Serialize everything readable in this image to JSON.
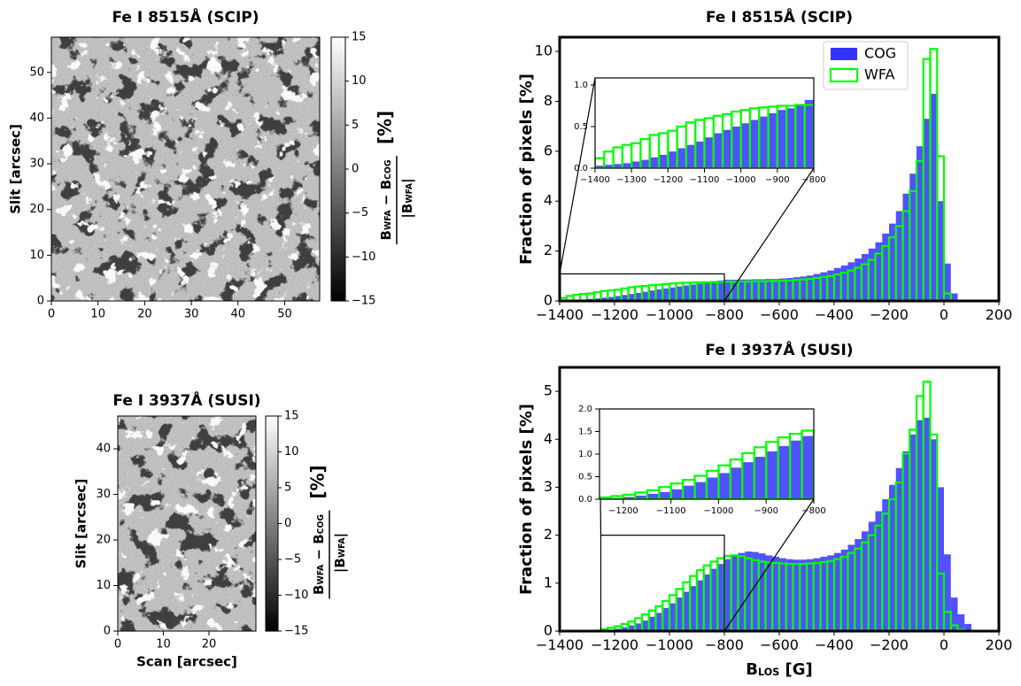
{
  "chart_data": [
    {
      "type": "heatmap",
      "title": "Fe I 8515Å (SCIP)",
      "ylabel": "Slit [arcsec]",
      "xlim": [
        0,
        57.5
      ],
      "ylim": [
        0,
        57.7
      ],
      "xticks": [
        0,
        10,
        20,
        30,
        40,
        50
      ],
      "yticks": [
        0,
        10,
        20,
        30,
        40,
        50
      ],
      "colormap": "gray",
      "clim": [
        -15,
        15
      ],
      "cticks": [
        {
          "value": -15,
          "label": "−15"
        },
        {
          "value": -10,
          "label": "−10"
        },
        {
          "value": -5,
          "label": "−5"
        },
        0,
        5,
        10,
        15
      ],
      "colorbar_label": {
        "numerator": [
          "B",
          "WFA",
          " − B",
          "COG"
        ],
        "denominator": [
          "|B",
          "WFA",
          "|"
        ],
        "unit": "[%]"
      }
    },
    {
      "type": "histogram",
      "title": "Fe I 8515Å (SCIP)",
      "ylabel": "Fraction of pixels [%]",
      "xlim": [
        -1400,
        200
      ],
      "ylim": [
        0,
        10.57
      ],
      "xticks": [
        {
          "value": -1400,
          "label": "−1400"
        },
        {
          "value": -1200,
          "label": "−1200"
        },
        {
          "value": -1000,
          "label": "−1000"
        },
        {
          "value": -800,
          "label": "−800"
        },
        {
          "value": -600,
          "label": "−600"
        },
        {
          "value": -400,
          "label": "−400"
        },
        {
          "value": -200,
          "label": "−200"
        },
        0,
        200
      ],
      "yticks": [
        0,
        2,
        4,
        6,
        8,
        10
      ],
      "bins": [
        -1400,
        -1375,
        -1350,
        -1325,
        -1300,
        -1275,
        -1250,
        -1225,
        -1200,
        -1175,
        -1150,
        -1125,
        -1100,
        -1075,
        -1050,
        -1025,
        -1000,
        -975,
        -950,
        -925,
        -900,
        -875,
        -850,
        -825,
        -800,
        -775,
        -750,
        -725,
        -700,
        -675,
        -650,
        -625,
        -600,
        -575,
        -550,
        -525,
        -500,
        -475,
        -450,
        -425,
        -400,
        -375,
        -350,
        -325,
        -300,
        -275,
        -250,
        -225,
        -200,
        -175,
        -150,
        -125,
        -100,
        -75,
        -50,
        -25,
        0,
        25,
        50
      ],
      "series": [
        {
          "name": "COG",
          "color": "#3333ff",
          "fill": true,
          "values": [
            0.03,
            0.04,
            0.05,
            0.06,
            0.08,
            0.1,
            0.13,
            0.16,
            0.2,
            0.24,
            0.28,
            0.32,
            0.37,
            0.42,
            0.46,
            0.5,
            0.54,
            0.58,
            0.62,
            0.66,
            0.7,
            0.72,
            0.75,
            0.82,
            0.85,
            0.85,
            0.86,
            0.86,
            0.87,
            0.87,
            0.88,
            0.88,
            0.9,
            0.92,
            0.95,
            0.98,
            1.02,
            1.08,
            1.15,
            1.22,
            1.32,
            1.42,
            1.55,
            1.7,
            1.88,
            2.1,
            2.35,
            2.7,
            3.1,
            3.6,
            4.3,
            5.1,
            6.2,
            7.3,
            8.3,
            4.0,
            1.5,
            0.3
          ]
        },
        {
          "name": "WFA",
          "color": "#00ff00",
          "fill": false,
          "values": [
            0.12,
            0.2,
            0.25,
            0.28,
            0.3,
            0.35,
            0.4,
            0.42,
            0.45,
            0.5,
            0.55,
            0.58,
            0.6,
            0.63,
            0.65,
            0.68,
            0.7,
            0.72,
            0.73,
            0.74,
            0.75,
            0.75,
            0.76,
            0.76,
            0.77,
            0.77,
            0.78,
            0.78,
            0.79,
            0.79,
            0.8,
            0.8,
            0.81,
            0.82,
            0.84,
            0.86,
            0.88,
            0.92,
            0.96,
            1.0,
            1.06,
            1.13,
            1.22,
            1.33,
            1.47,
            1.65,
            1.9,
            2.2,
            2.55,
            3.0,
            3.6,
            4.4,
            5.6,
            9.7,
            10.1,
            5.8,
            0.3,
            0
          ]
        }
      ],
      "legend": "upper right",
      "inset": {
        "xlim": [
          -1400,
          -800
        ],
        "ylim": [
          0,
          1.085
        ],
        "xticks": [
          {
            "value": -1400,
            "label": "−1400"
          },
          {
            "value": -1300,
            "label": "−1300"
          },
          {
            "value": -1200,
            "label": "−1200"
          },
          {
            "value": -1100,
            "label": "−1100"
          },
          {
            "value": -1000,
            "label": "−1000"
          },
          {
            "value": -900,
            "label": "−900"
          },
          {
            "value": -800,
            "label": "−800"
          }
        ],
        "yticks": [
          {
            "value": 0,
            "label": "0.0"
          },
          0.5,
          {
            "value": 1,
            "label": "1.0"
          }
        ]
      }
    },
    {
      "type": "heatmap",
      "title": "Fe I 3937Å (SUSI)",
      "xlabel": "Scan [arcsec]",
      "ylabel": "Slit [arcsec]",
      "xlim": [
        0,
        30.3
      ],
      "ylim": [
        0,
        47.2
      ],
      "xticks": [
        0,
        10,
        20
      ],
      "yticks": [
        0,
        10,
        20,
        30,
        40
      ],
      "colormap": "gray",
      "clim": [
        -15,
        15
      ],
      "cticks": [
        {
          "value": -15,
          "label": "−15"
        },
        {
          "value": -10,
          "label": "−10"
        },
        {
          "value": -5,
          "label": "−5"
        },
        0,
        5,
        10,
        15
      ],
      "colorbar_label": {
        "numerator": [
          "B",
          "WFA",
          " − B",
          "COG"
        ],
        "denominator": [
          "|B",
          "WFA",
          "|"
        ],
        "unit": "[%]"
      }
    },
    {
      "type": "histogram",
      "title": "Fe I 3937Å (SUSI)",
      "xlabel": [
        "B",
        "LOS",
        " [G]"
      ],
      "ylabel": "Fraction of pixels [%]",
      "xlim": [
        -1400,
        200
      ],
      "ylim": [
        0,
        5.5
      ],
      "xticks": [
        {
          "value": -1400,
          "label": "−1400"
        },
        {
          "value": -1200,
          "label": "−1200"
        },
        {
          "value": -1000,
          "label": "−1000"
        },
        {
          "value": -800,
          "label": "−800"
        },
        {
          "value": -600,
          "label": "−600"
        },
        {
          "value": -400,
          "label": "−400"
        },
        {
          "value": -200,
          "label": "−200"
        },
        0,
        200
      ],
      "yticks": [
        0,
        1,
        2,
        3,
        4,
        5
      ],
      "bins": [
        -1400,
        -1375,
        -1350,
        -1325,
        -1300,
        -1275,
        -1250,
        -1225,
        -1200,
        -1175,
        -1150,
        -1125,
        -1100,
        -1075,
        -1050,
        -1025,
        -1000,
        -975,
        -950,
        -925,
        -900,
        -875,
        -850,
        -825,
        -800,
        -775,
        -750,
        -725,
        -700,
        -675,
        -650,
        -625,
        -600,
        -575,
        -550,
        -525,
        -500,
        -475,
        -450,
        -425,
        -400,
        -375,
        -350,
        -325,
        -300,
        -275,
        -250,
        -225,
        -200,
        -175,
        -150,
        -125,
        -100,
        -75,
        -50,
        -25,
        0,
        25,
        50,
        75,
        100
      ],
      "series": [
        {
          "name": "COG",
          "color": "#3333ff",
          "fill": true,
          "values": [
            0,
            0,
            0,
            0,
            0,
            0.01,
            0.02,
            0.03,
            0.05,
            0.08,
            0.12,
            0.16,
            0.22,
            0.3,
            0.38,
            0.48,
            0.58,
            0.7,
            0.82,
            0.94,
            1.06,
            1.18,
            1.3,
            1.4,
            1.5,
            1.57,
            1.63,
            1.66,
            1.65,
            1.62,
            1.58,
            1.55,
            1.52,
            1.5,
            1.49,
            1.49,
            1.5,
            1.52,
            1.55,
            1.58,
            1.63,
            1.7,
            1.8,
            1.92,
            2.08,
            2.28,
            2.5,
            2.75,
            3.05,
            3.4,
            3.75,
            4.1,
            4.4,
            4.45,
            4.0,
            3.0,
            1.6,
            0.7,
            0.35,
            0.15
          ]
        },
        {
          "name": "WFA",
          "color": "#00ff00",
          "fill": false,
          "values": [
            0,
            0,
            0,
            0,
            0,
            0.01,
            0.04,
            0.07,
            0.1,
            0.15,
            0.2,
            0.27,
            0.35,
            0.43,
            0.52,
            0.63,
            0.75,
            0.88,
            1.02,
            1.15,
            1.27,
            1.37,
            1.45,
            1.52,
            1.57,
            1.58,
            1.56,
            1.52,
            1.48,
            1.45,
            1.43,
            1.42,
            1.41,
            1.4,
            1.4,
            1.4,
            1.41,
            1.42,
            1.44,
            1.46,
            1.5,
            1.55,
            1.63,
            1.72,
            1.85,
            2.0,
            2.2,
            2.45,
            2.75,
            3.1,
            3.7,
            4.2,
            4.9,
            5.2,
            4.1,
            1.2,
            0.4,
            0.12,
            0.03,
            0
          ]
        }
      ],
      "inset": {
        "xlim": [
          -1250,
          -800
        ],
        "ylim": [
          0,
          2
        ],
        "xticks": [
          {
            "value": -1200,
            "label": "−1200"
          },
          {
            "value": -1100,
            "label": "−1100"
          },
          {
            "value": -1000,
            "label": "−1000"
          },
          {
            "value": -900,
            "label": "−900"
          },
          {
            "value": -800,
            "label": "−800"
          }
        ],
        "yticks": [
          {
            "value": 0,
            "label": "0.0"
          },
          0.5,
          {
            "value": 1,
            "label": "1.0"
          },
          1.5,
          {
            "value": 2,
            "label": "2.0"
          }
        ]
      }
    }
  ]
}
